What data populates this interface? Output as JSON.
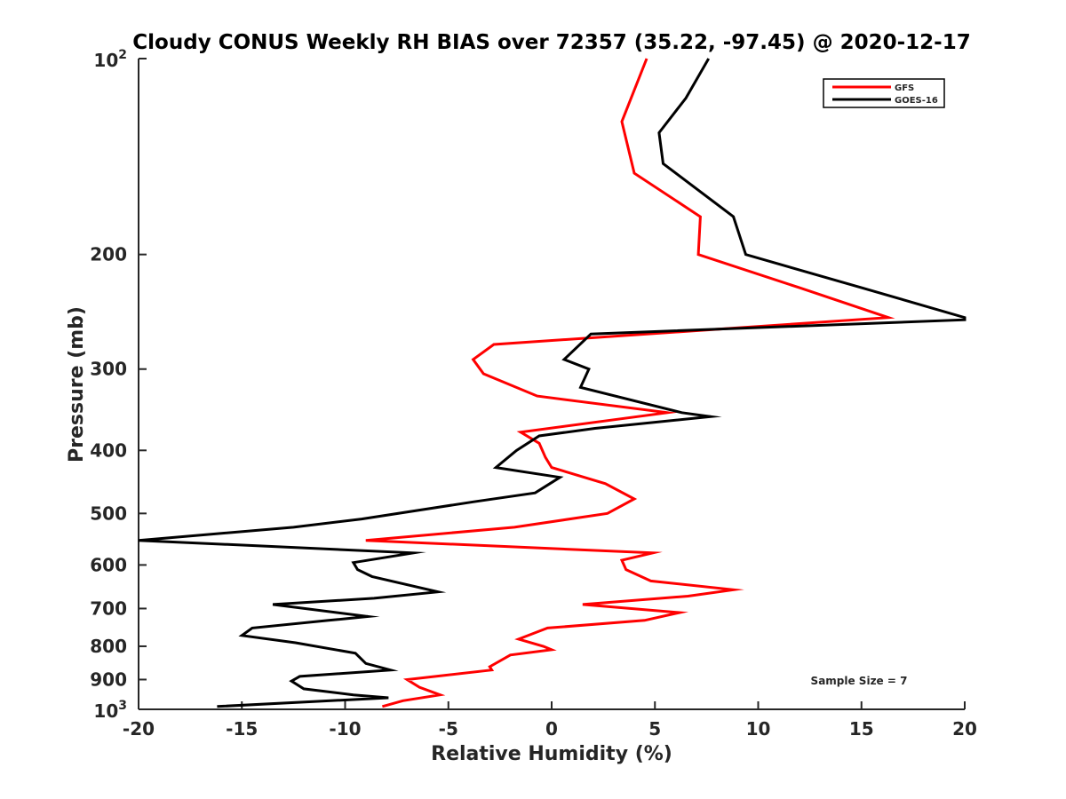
{
  "chart_data": {
    "type": "line",
    "title": "Cloudy CONUS Weekly RH BIAS over 72357 (35.22, -97.45) @ 2020-12-17",
    "xlabel": "Relative Humidity (%)",
    "ylabel": "Pressure (mb)",
    "xlim": [
      -20,
      20
    ],
    "ylim": [
      100,
      1000
    ],
    "y_scale": "log",
    "y_reversed": true,
    "x_ticks": [
      "-20",
      "-15",
      "-10",
      "-5",
      "0",
      "5",
      "10",
      "15",
      "20"
    ],
    "y_ticks": [
      {
        "value": 100,
        "base": "10",
        "exp": "2"
      },
      {
        "value": 200,
        "label": "200"
      },
      {
        "value": 300,
        "label": "300"
      },
      {
        "value": 400,
        "label": "400"
      },
      {
        "value": 500,
        "label": "500"
      },
      {
        "value": 600,
        "label": "600"
      },
      {
        "value": 700,
        "label": "700"
      },
      {
        "value": 800,
        "label": "800"
      },
      {
        "value": 900,
        "label": "900"
      },
      {
        "value": 1000,
        "base": "10",
        "exp": "3"
      }
    ],
    "grid": false,
    "legend_position": "top-right",
    "annotation": "Sample Size = 7",
    "series": [
      {
        "name": "GFS",
        "color": "#ff0000",
        "points": [
          [
            4.6,
            100
          ],
          [
            3.4,
            125
          ],
          [
            4.0,
            150
          ],
          [
            7.2,
            175
          ],
          [
            7.1,
            200
          ],
          [
            12.0,
            225
          ],
          [
            16.3,
            250
          ],
          [
            -2.8,
            275
          ],
          [
            -3.8,
            290
          ],
          [
            -3.3,
            305
          ],
          [
            -0.7,
            330
          ],
          [
            5.6,
            350
          ],
          [
            -1.5,
            375
          ],
          [
            -0.6,
            390
          ],
          [
            -0.3,
            410
          ],
          [
            -0.0,
            425
          ],
          [
            2.6,
            450
          ],
          [
            4.0,
            475
          ],
          [
            2.7,
            500
          ],
          [
            -1.8,
            525
          ],
          [
            -9.0,
            550
          ],
          [
            4.9,
            575
          ],
          [
            3.4,
            590
          ],
          [
            3.6,
            610
          ],
          [
            4.8,
            635
          ],
          [
            8.8,
            655
          ],
          [
            6.6,
            670
          ],
          [
            1.5,
            690
          ],
          [
            6.2,
            710
          ],
          [
            4.5,
            730
          ],
          [
            -0.2,
            750
          ],
          [
            -1.6,
            780
          ],
          [
            -0.4,
            800
          ],
          [
            0.0,
            810
          ],
          [
            -2.0,
            825
          ],
          [
            -3.0,
            860
          ],
          [
            -2.9,
            870
          ],
          [
            -7.0,
            900
          ],
          [
            -6.4,
            925
          ],
          [
            -5.4,
            950
          ],
          [
            -7.2,
            970
          ],
          [
            -8.2,
            990
          ]
        ]
      },
      {
        "name": "GOES-16",
        "color": "#000000",
        "points": [
          [
            7.6,
            100
          ],
          [
            6.5,
            115
          ],
          [
            5.2,
            130
          ],
          [
            5.4,
            145
          ],
          [
            8.8,
            175
          ],
          [
            9.4,
            200
          ],
          [
            15.0,
            225
          ],
          [
            20.0,
            250
          ],
          [
            20.0,
            252
          ],
          [
            1.9,
            265
          ],
          [
            0.6,
            290
          ],
          [
            1.8,
            300
          ],
          [
            1.4,
            320
          ],
          [
            6.3,
            350
          ],
          [
            7.7,
            355
          ],
          [
            2.1,
            370
          ],
          [
            -0.6,
            380
          ],
          [
            -1.7,
            400
          ],
          [
            -2.7,
            425
          ],
          [
            0.4,
            440
          ],
          [
            -0.8,
            465
          ],
          [
            -3.8,
            480
          ],
          [
            -9.2,
            510
          ],
          [
            -12.5,
            525
          ],
          [
            -20.0,
            550
          ],
          [
            -6.7,
            575
          ],
          [
            -9.6,
            595
          ],
          [
            -9.4,
            610
          ],
          [
            -8.7,
            625
          ],
          [
            -5.5,
            660
          ],
          [
            -8.6,
            675
          ],
          [
            -13.5,
            690
          ],
          [
            -8.9,
            720
          ],
          [
            -10.8,
            730
          ],
          [
            -14.5,
            750
          ],
          [
            -15.0,
            770
          ],
          [
            -12.4,
            790
          ],
          [
            -9.5,
            820
          ],
          [
            -9.0,
            850
          ],
          [
            -7.8,
            870
          ],
          [
            -12.2,
            890
          ],
          [
            -12.6,
            905
          ],
          [
            -12.0,
            930
          ],
          [
            -9.6,
            950
          ],
          [
            -7.9,
            960
          ],
          [
            -16.2,
            990
          ]
        ]
      }
    ]
  }
}
